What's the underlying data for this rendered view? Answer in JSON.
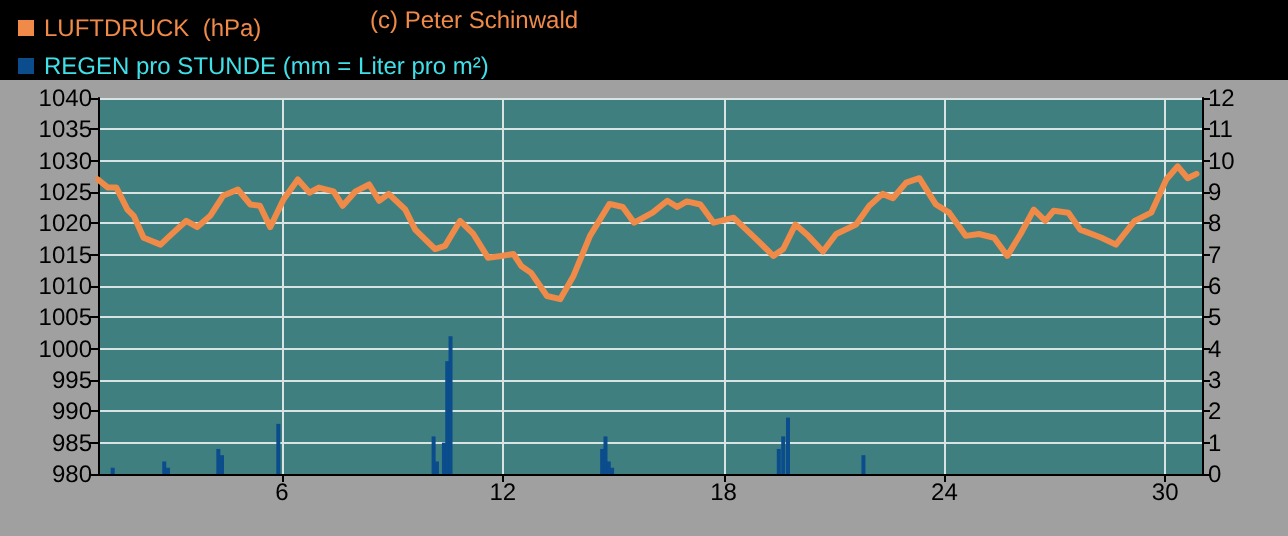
{
  "chart_data": {
    "type": "line",
    "annotations": [
      "(c) Peter Schinwald"
    ],
    "legend": "top left",
    "grid": true,
    "xlim": [
      1,
      31
    ],
    "xticks": [
      6,
      12,
      18,
      24,
      30
    ],
    "ylim": [
      980,
      1040
    ],
    "yticks": [
      980,
      985,
      990,
      995,
      1000,
      1005,
      1010,
      1015,
      1020,
      1025,
      1030,
      1035,
      1040
    ],
    "y2lim": [
      0,
      12
    ],
    "y2ticks": [
      0,
      1,
      2,
      3,
      4,
      5,
      6,
      7,
      8,
      9,
      10,
      11,
      12
    ],
    "series": [
      {
        "name": "LUFTDRUCK  (hPa)",
        "color": "#f08a48",
        "x": [
          1,
          1.27,
          1.5,
          1.8,
          1.97,
          2.24,
          2.7,
          2.95,
          3.4,
          3.7,
          4.05,
          4.4,
          4.8,
          5.14,
          5.4,
          5.68,
          6.04,
          6.43,
          6.75,
          7,
          7.4,
          7.65,
          8,
          8.37,
          8.64,
          8.9,
          9.35,
          9.62,
          10.16,
          10.43,
          10.84,
          11.2,
          11.6,
          11.96,
          12.29,
          12.5,
          12.77,
          13.2,
          13.56,
          13.92,
          14.37,
          14.9,
          15.26,
          15.57,
          16.07,
          16.47,
          16.74,
          17,
          17.37,
          17.73,
          18.27,
          18.9,
          19.35,
          19.62,
          19.95,
          20.3,
          20.7,
          21.06,
          21.6,
          21.96,
          22.32,
          22.6,
          22.96,
          23.32,
          23.77,
          24.13,
          24.58,
          24.94,
          25.35,
          25.71,
          26.07,
          26.43,
          26.74,
          26.97,
          27.37,
          27.69,
          28.27,
          28.66,
          29.17,
          29.62,
          30.03,
          30.34,
          30.61,
          30.85
        ],
        "values": [
          1027,
          1025.7,
          1025.7,
          1022.2,
          1021.2,
          1017.7,
          1016.6,
          1018,
          1020.4,
          1019.4,
          1021.2,
          1024.4,
          1025.4,
          1023,
          1022.8,
          1019.4,
          1023.8,
          1027,
          1024.9,
          1025.7,
          1025.1,
          1022.8,
          1025.1,
          1026.2,
          1023.6,
          1024.7,
          1022.2,
          1019,
          1015.9,
          1016.4,
          1020.4,
          1018.3,
          1014.5,
          1014.8,
          1015.1,
          1013.2,
          1012.1,
          1008.4,
          1007.9,
          1011.6,
          1018,
          1023.1,
          1022.6,
          1020.1,
          1021.7,
          1023.6,
          1022.6,
          1023.5,
          1023,
          1020.1,
          1020.9,
          1017.4,
          1014.8,
          1015.9,
          1019.8,
          1018,
          1015.5,
          1018.3,
          1019.8,
          1022.8,
          1024.7,
          1024,
          1026.5,
          1027.2,
          1023,
          1021.7,
          1018,
          1018.3,
          1017.7,
          1014.8,
          1018.3,
          1022.2,
          1020.4,
          1022,
          1021.7,
          1019,
          1017.7,
          1016.6,
          1020.4,
          1021.7,
          1027,
          1029.1,
          1027.2,
          1027.9
        ]
      },
      {
        "name": "REGEN pro STUNDE (mm = Liter pro m²)",
        "type": "bar",
        "axis": "y2",
        "color": "#0a4c8c",
        "x": [
          1.4,
          2.8,
          2.9,
          4.27,
          4.37,
          5.9,
          10.12,
          10.21,
          10.4,
          10.49,
          10.58,
          14.7,
          14.79,
          14.88,
          14.97,
          19.5,
          19.62,
          19.75,
          21.8
        ],
        "values": [
          0.2,
          0.4,
          0.2,
          0.8,
          0.6,
          1.6,
          1.2,
          0.4,
          1,
          3.6,
          4.4,
          0.8,
          1.2,
          0.4,
          0.2,
          0.8,
          1.2,
          1.8,
          0.6
        ]
      }
    ]
  }
}
